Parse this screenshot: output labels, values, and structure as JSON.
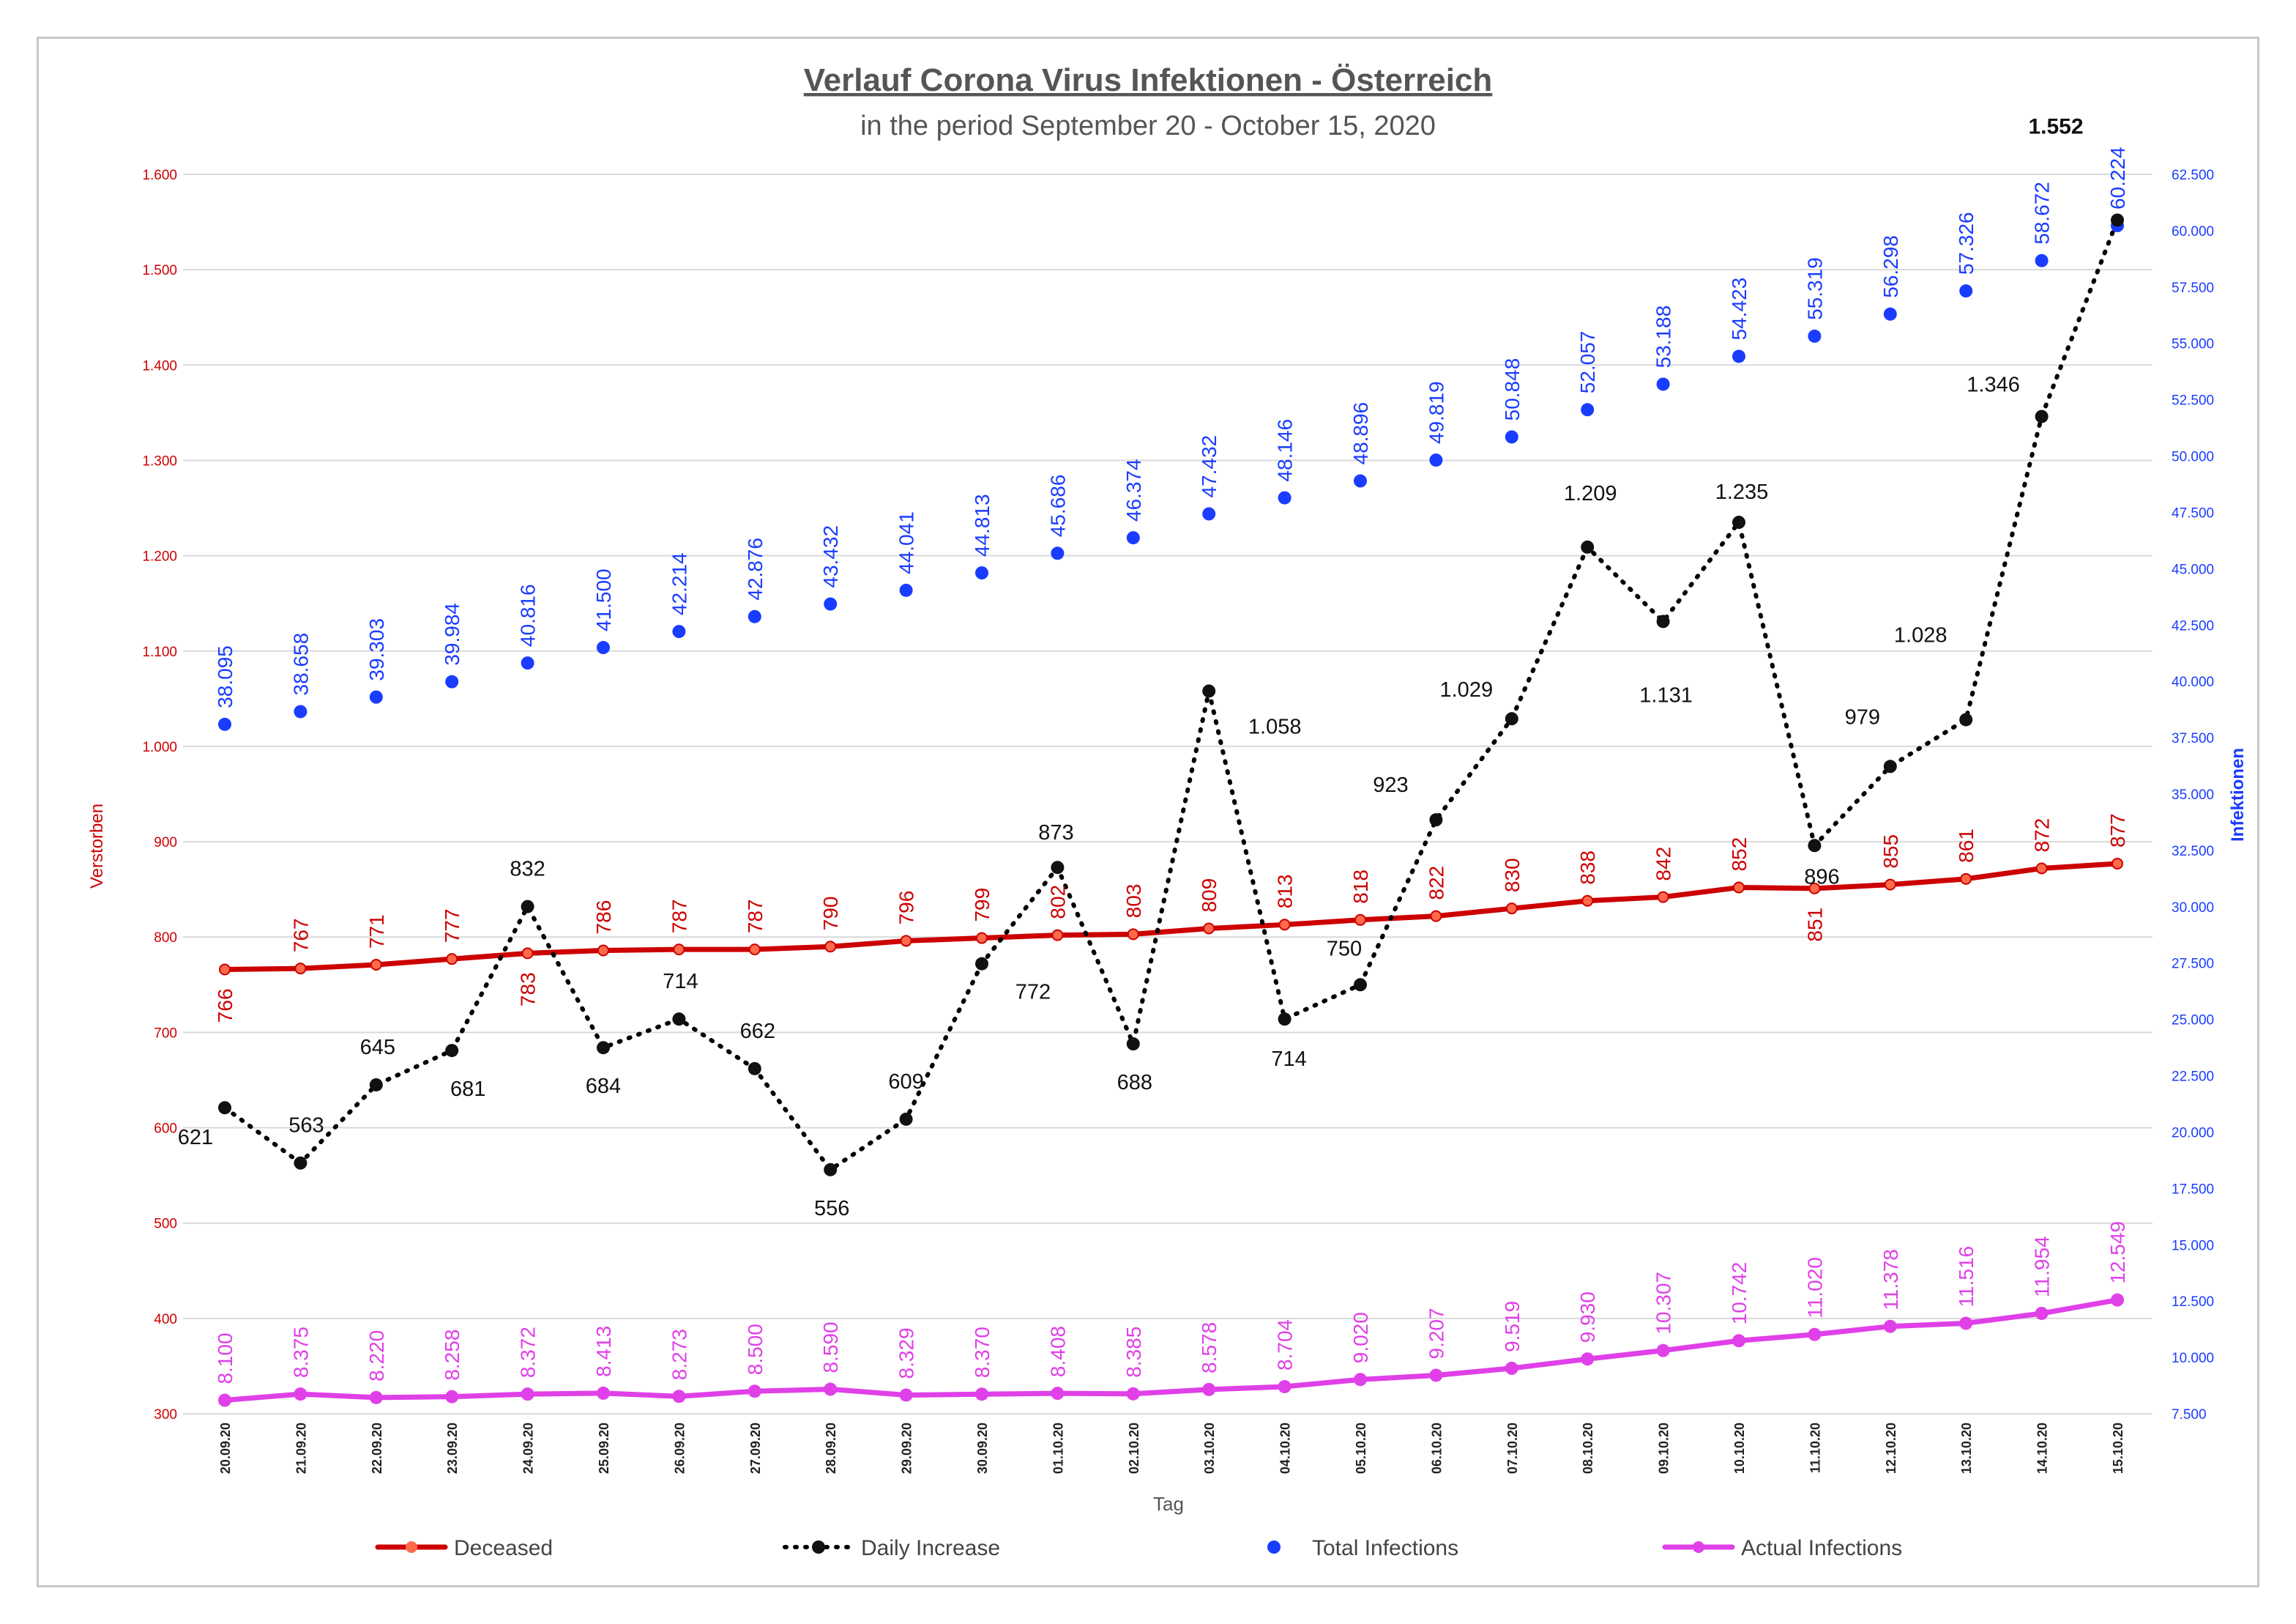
{
  "chart_data": {
    "type": "line",
    "title": "Verlauf Corona Virus Infektionen - Österreich",
    "subtitle": "in the period September 20 - October 15, 2020",
    "xlabel": "Tag",
    "ylabel_left": "Verstorben",
    "ylabel_right": "Infektionen",
    "ylim_left": [
      300,
      1600
    ],
    "ylim_right": [
      7500,
      62500
    ],
    "left_ticks": [
      "300",
      "400",
      "500",
      "600",
      "700",
      "800",
      "900",
      "1.000",
      "1.100",
      "1.200",
      "1.300",
      "1.400",
      "1.500",
      "1.600"
    ],
    "right_ticks": [
      "7.500",
      "10.000",
      "12.500",
      "15.000",
      "17.500",
      "20.000",
      "22.500",
      "25.000",
      "27.500",
      "30.000",
      "32.500",
      "35.000",
      "37.500",
      "40.000",
      "42.500",
      "45.000",
      "47.500",
      "50.000",
      "52.500",
      "55.000",
      "57.500",
      "60.000",
      "62.500"
    ],
    "grid": true,
    "legend_position": "bottom",
    "categories": [
      "20.09.20",
      "21.09.20",
      "22.09.20",
      "23.09.20",
      "24.09.20",
      "25.09.20",
      "26.09.20",
      "27.09.20",
      "28.09.20",
      "29.09.20",
      "30.09.20",
      "01.10.20",
      "02.10.20",
      "03.10.20",
      "04.10.20",
      "05.10.20",
      "06.10.20",
      "07.10.20",
      "08.10.20",
      "09.10.20",
      "10.10.20",
      "11.10.20",
      "12.10.20",
      "13.10.20",
      "14.10.20",
      "15.10.20"
    ],
    "series": [
      {
        "name": "Deceased",
        "axis": "left",
        "color": "#cc0000",
        "values": [
          766,
          767,
          771,
          777,
          783,
          786,
          787,
          787,
          790,
          796,
          799,
          802,
          803,
          809,
          813,
          818,
          822,
          830,
          838,
          842,
          852,
          851,
          855,
          861,
          872,
          877
        ],
        "labels": [
          "766",
          "767",
          "771",
          "777",
          "783",
          "786",
          "787",
          "787",
          "790",
          "796",
          "799",
          "802",
          "803",
          "809",
          "813",
          "818",
          "822",
          "830",
          "838",
          "842",
          "852",
          "851",
          "855",
          "861",
          "872",
          "877"
        ]
      },
      {
        "name": "Daily Increase",
        "axis": "left",
        "color": "#000000",
        "values": [
          621,
          563,
          645,
          681,
          832,
          684,
          714,
          662,
          556,
          609,
          772,
          873,
          688,
          1058,
          714,
          750,
          923,
          1029,
          1209,
          1131,
          1235,
          896,
          979,
          1028,
          1346,
          1552
        ],
        "labels": [
          "621",
          "563",
          "645",
          "681",
          "832",
          "684",
          "714",
          "662",
          "556",
          "609",
          "772",
          "873",
          "688",
          "1.058",
          "714",
          "750",
          "923",
          "1.029",
          "1.209",
          "1.131",
          "1.235",
          "896",
          "979",
          "1.028",
          "1.346",
          "1.552"
        ]
      },
      {
        "name": "Total Infections",
        "axis": "right",
        "color": "#1a3cff",
        "values": [
          38095,
          38658,
          39303,
          39984,
          40816,
          41500,
          42214,
          42876,
          43432,
          44041,
          44813,
          45686,
          46374,
          47432,
          48146,
          48896,
          49819,
          50848,
          52057,
          53188,
          54423,
          55319,
          56298,
          57326,
          58672,
          60224
        ],
        "labels": [
          "38.095",
          "38.658",
          "39.303",
          "39.984",
          "40.816",
          "41.500",
          "42.214",
          "42.876",
          "43.432",
          "44.041",
          "44.813",
          "45.686",
          "46.374",
          "47.432",
          "48.146",
          "48.896",
          "49.819",
          "50.848",
          "52.057",
          "53.188",
          "54.423",
          "55.319",
          "56.298",
          "57.326",
          "58.672",
          "60.224"
        ]
      },
      {
        "name": "Actual Infections",
        "axis": "right",
        "color": "#e040e8",
        "values": [
          8100,
          8375,
          8220,
          8258,
          8372,
          8413,
          8273,
          8500,
          8590,
          8329,
          8370,
          8408,
          8385,
          8578,
          8704,
          9020,
          9207,
          9519,
          9930,
          10307,
          10742,
          11020,
          11378,
          11516,
          11954,
          12549
        ],
        "labels": [
          "8.100",
          "8.375",
          "8.220",
          "8.258",
          "8.372",
          "8.413",
          "8.273",
          "8.500",
          "8.590",
          "8.329",
          "8.370",
          "8.408",
          "8.385",
          "8.578",
          "8.704",
          "9.020",
          "9.207",
          "9.519",
          "9.930",
          "10.307",
          "10.742",
          "11.020",
          "11.378",
          "11.516",
          "11.954",
          "12.549"
        ]
      }
    ],
    "legend": [
      {
        "name": "Deceased",
        "color": "#cc0000"
      },
      {
        "name": "Daily Increase",
        "color": "#000000"
      },
      {
        "name": "Total Infections",
        "color": "#1a3cff"
      },
      {
        "name": "Actual Infections",
        "color": "#e040e8"
      }
    ]
  }
}
